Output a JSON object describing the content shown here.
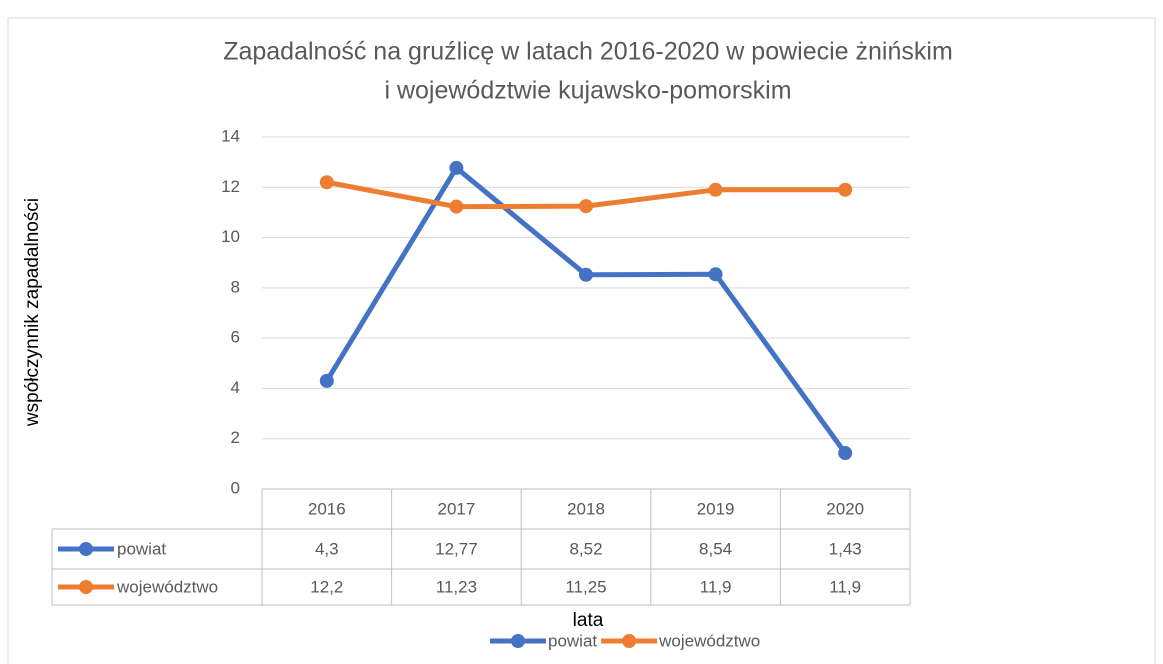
{
  "chart_data": {
    "type": "line",
    "title": [
      "Zapadalność na gruźlicę w latach 2016-2020 w powiecie żnińskim",
      "i województwie kujawsko-pomorskim"
    ],
    "y_label": "współczynnik zapadalności",
    "x_label": "lata",
    "categories": [
      "2016",
      "2017",
      "2018",
      "2019",
      "2020"
    ],
    "series": [
      {
        "name": "powiat",
        "color": "#4472c4",
        "values": [
          4.3,
          12.77,
          8.52,
          8.54,
          1.43
        ],
        "value_labels": [
          "4,3",
          "12,77",
          "8,52",
          "8,54",
          "1,43"
        ]
      },
      {
        "name": "województwo",
        "color": "#ed7d31",
        "values": [
          12.2,
          11.23,
          11.25,
          11.9,
          11.9
        ],
        "value_labels": [
          "12,2",
          "11,23",
          "11,25",
          "11,9",
          "11,9"
        ]
      }
    ],
    "ylim": [
      0,
      14
    ],
    "yticks": [
      0,
      2,
      4,
      6,
      8,
      10,
      12,
      14
    ],
    "grid": true,
    "legend": "bottom",
    "data_table": true
  }
}
